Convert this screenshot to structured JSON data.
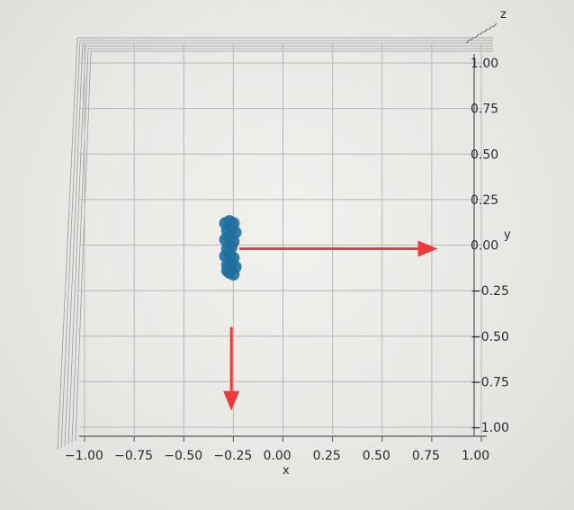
{
  "chart_data": {
    "type": "scatter",
    "projection": "3d",
    "view": "top-down",
    "xlabel": "x",
    "ylabel": "y",
    "zlabel": "z",
    "xlim": [
      -1.0,
      1.0
    ],
    "ylim": [
      -1.0,
      1.0
    ],
    "x_ticks": [
      "−1.00",
      "−0.75",
      "−0.50",
      "−0.25",
      "0.00",
      "0.25",
      "0.50",
      "0.75",
      "1.00"
    ],
    "y_ticks": [
      "−1.00",
      "−0.75",
      "−0.50",
      "−0.25",
      "0.00",
      "0.25",
      "0.50",
      "0.75",
      "1.00"
    ],
    "grid": true,
    "series": [
      {
        "color": "#1f6fa0",
        "x": [
          -0.29,
          -0.27,
          -0.25,
          -0.28,
          -0.26,
          -0.24,
          -0.29,
          -0.27,
          -0.25,
          -0.28,
          -0.26,
          -0.29,
          -0.27,
          -0.25,
          -0.28,
          -0.26,
          -0.24,
          -0.27,
          -0.25,
          -0.28
        ],
        "y": [
          0.12,
          0.13,
          0.12,
          0.08,
          0.09,
          0.07,
          0.03,
          0.04,
          0.02,
          -0.02,
          -0.01,
          -0.06,
          -0.05,
          -0.07,
          -0.11,
          -0.1,
          -0.12,
          -0.15,
          -0.16,
          -0.14
        ]
      }
    ],
    "annotations": [
      {
        "type": "arrow",
        "color": "#f03a3a",
        "from": [
          -0.22,
          -0.02
        ],
        "to": [
          0.78,
          -0.02
        ]
      },
      {
        "type": "arrow",
        "color": "#f03a3a",
        "from": [
          -0.26,
          -0.45
        ],
        "to": [
          -0.26,
          -0.91
        ]
      }
    ]
  }
}
